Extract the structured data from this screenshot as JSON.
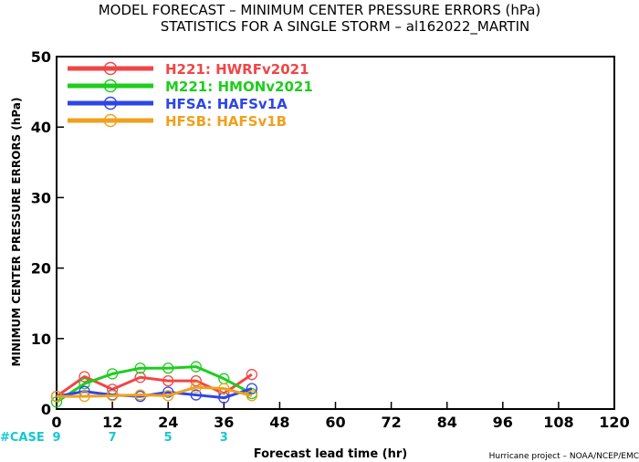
{
  "chart_data": {
    "type": "line",
    "title_line1": "MODEL FORECAST – MINIMUM CENTER PRESSURE ERRORS (hPa)",
    "title_line2": "STATISTICS FOR A SINGLE STORM – al162022_MARTIN",
    "ylabel": "MINIMUM CENTER PRESSURE ERRORS (hPa)",
    "xlabel": "Forecast lead time (hr)",
    "credit": "Hurricane project – NOAA/NCEP/EMC",
    "xlim": [
      0,
      120
    ],
    "ylim": [
      0,
      50
    ],
    "xticks": [
      0,
      12,
      24,
      36,
      48,
      60,
      72,
      84,
      96,
      108,
      120
    ],
    "yticks": [
      0,
      10,
      20,
      30,
      40,
      50
    ],
    "x": [
      0,
      6,
      12,
      18,
      24,
      30,
      36,
      42
    ],
    "series": [
      {
        "name": "H221: HWRFv2021",
        "color": "#f04646",
        "values": [
          1.8,
          4.6,
          2.8,
          4.5,
          4.0,
          4.0,
          2.2,
          4.9
        ]
      },
      {
        "name": "M221: HMONv2021",
        "color": "#1ecd1e",
        "values": [
          1.0,
          3.6,
          5.0,
          5.8,
          5.8,
          6.0,
          4.3,
          2.2
        ]
      },
      {
        "name": "HFSA: HAFSv1A",
        "color": "#2d46e6",
        "values": [
          1.8,
          2.5,
          2.0,
          1.8,
          2.4,
          2.0,
          1.6,
          2.9
        ]
      },
      {
        "name": "HFSB: HAFSv1B",
        "color": "#f0a01e",
        "values": [
          1.8,
          1.8,
          1.9,
          2.0,
          1.9,
          3.1,
          2.9,
          1.9
        ]
      }
    ],
    "case_label": "#CASE",
    "case_color": "#14c8d2",
    "cases": [
      {
        "x": 0,
        "n": "9"
      },
      {
        "x": 12,
        "n": "7"
      },
      {
        "x": 24,
        "n": "5"
      },
      {
        "x": 36,
        "n": "3"
      }
    ]
  }
}
